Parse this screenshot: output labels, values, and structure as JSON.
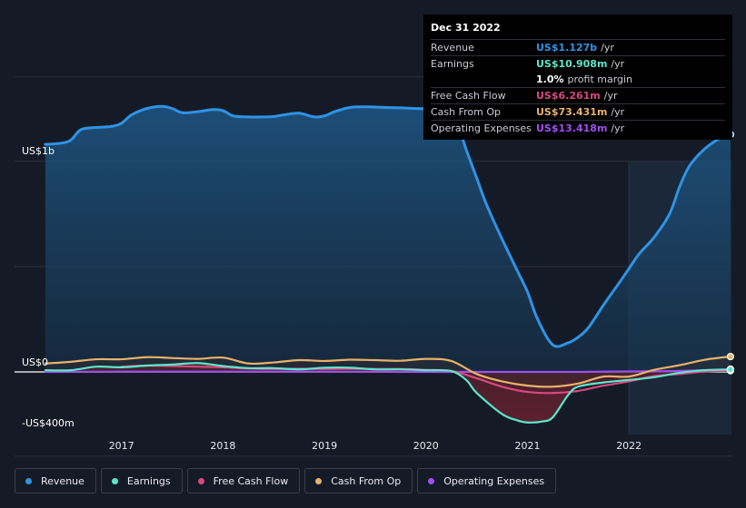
{
  "tooltip": {
    "date": "Dec 31 2022",
    "rows": [
      {
        "label": "Revenue",
        "value": "US$1.127b",
        "unit": "/yr",
        "color": "#2f93e5"
      },
      {
        "label": "Earnings",
        "value": "US$10.908m",
        "unit": "/yr",
        "color": "#5ce6cc"
      },
      {
        "label": "",
        "value": "1.0%",
        "unit": "profit margin",
        "color": "#ffffff"
      },
      {
        "label": "Free Cash Flow",
        "value": "US$6.261m",
        "unit": "/yr",
        "color": "#d9487f"
      },
      {
        "label": "Cash From Op",
        "value": "US$73.431m",
        "unit": "/yr",
        "color": "#e7b26b"
      },
      {
        "label": "Operating Expenses",
        "value": "US$13.418m",
        "unit": "/yr",
        "color": "#a24ef0"
      }
    ]
  },
  "legend": [
    {
      "label": "Revenue",
      "color": "#2f93e5"
    },
    {
      "label": "Earnings",
      "color": "#5ce6cc"
    },
    {
      "label": "Free Cash Flow",
      "color": "#d9487f"
    },
    {
      "label": "Cash From Op",
      "color": "#e7b26b"
    },
    {
      "label": "Operating Expenses",
      "color": "#a24ef0"
    }
  ],
  "chart_data": {
    "type": "area",
    "y_axis_labels": [
      "US$1b",
      "US$0",
      "-US$400m"
    ],
    "x_tick_labels": [
      "2017",
      "2018",
      "2019",
      "2020",
      "2021",
      "2022"
    ],
    "x_ticks": [
      2017,
      2018,
      2019,
      2020,
      2021,
      2022
    ],
    "xlim": [
      2015.9,
      2023.0
    ],
    "ylim": [
      -400,
      1400
    ],
    "gridlines": [
      -400,
      0,
      500,
      1000,
      1400
    ],
    "forecast_start": 2022.0,
    "grid": true,
    "series": [
      {
        "name": "Revenue",
        "color": "#2f93e5",
        "x": [
          2016.25,
          2016.4,
          2016.5,
          2016.6,
          2016.75,
          2016.9,
          2017.0,
          2017.1,
          2017.25,
          2017.4,
          2017.5,
          2017.6,
          2017.75,
          2017.9,
          2018.0,
          2018.1,
          2018.25,
          2018.4,
          2018.5,
          2018.6,
          2018.75,
          2018.9,
          2019.0,
          2019.1,
          2019.25,
          2019.4,
          2019.5,
          2019.6,
          2019.75,
          2019.9,
          2020.0,
          2020.1,
          2020.25,
          2020.4,
          2020.5,
          2020.6,
          2020.75,
          2020.9,
          2021.0,
          2021.1,
          2021.25,
          2021.4,
          2021.5,
          2021.6,
          2021.75,
          2021.9,
          2022.0,
          2022.1,
          2022.25,
          2022.4,
          2022.5,
          2022.6,
          2022.75,
          2022.9,
          2023.0
        ],
        "y": [
          1080,
          1085,
          1100,
          1150,
          1160,
          1165,
          1180,
          1220,
          1250,
          1260,
          1250,
          1230,
          1235,
          1245,
          1240,
          1215,
          1210,
          1210,
          1212,
          1220,
          1228,
          1210,
          1215,
          1235,
          1255,
          1258,
          1257,
          1255,
          1253,
          1250,
          1250,
          1255,
          1250,
          1050,
          920,
          790,
          630,
          480,
          380,
          250,
          128,
          138,
          165,
          210,
          318,
          420,
          490,
          560,
          640,
          750,
          880,
          980,
          1060,
          1110,
          1127
        ]
      },
      {
        "name": "Earnings",
        "color": "#5ce6cc",
        "x": [
          2016.25,
          2016.5,
          2016.75,
          2017.0,
          2017.25,
          2017.5,
          2017.75,
          2018.0,
          2018.25,
          2018.5,
          2018.75,
          2019.0,
          2019.25,
          2019.5,
          2019.75,
          2020.0,
          2020.25,
          2020.4,
          2020.5,
          2020.75,
          2020.9,
          2021.0,
          2021.15,
          2021.25,
          2021.4,
          2021.5,
          2021.75,
          2022.0,
          2022.25,
          2022.5,
          2022.75,
          2023.0
        ],
        "y": [
          8,
          8,
          25,
          22,
          30,
          35,
          42,
          28,
          18,
          18,
          12,
          20,
          20,
          12,
          12,
          8,
          4,
          -40,
          -100,
          -200,
          -230,
          -240,
          -235,
          -215,
          -110,
          -70,
          -50,
          -38,
          -25,
          -4,
          8,
          11
        ]
      },
      {
        "name": "Free Cash Flow",
        "color": "#d9487f",
        "x": [
          2017.0,
          2017.25,
          2017.5,
          2017.75,
          2018.0,
          2018.25,
          2018.5,
          2018.75,
          2019.0,
          2019.25,
          2019.5,
          2019.75,
          2020.0,
          2020.25,
          2020.5,
          2020.75,
          2021.0,
          2021.25,
          2021.5,
          2021.75,
          2022.0,
          2022.25,
          2022.5,
          2022.75,
          2023.0
        ],
        "y": [
          25,
          30,
          28,
          25,
          22,
          16,
          14,
          15,
          14,
          15,
          14,
          14,
          10,
          5,
          -30,
          -70,
          -95,
          -100,
          -90,
          -65,
          -45,
          -20,
          -10,
          2,
          6
        ]
      },
      {
        "name": "Cash From Op",
        "color": "#e7b26b",
        "x": [
          2016.25,
          2016.5,
          2016.75,
          2017.0,
          2017.25,
          2017.5,
          2017.75,
          2018.0,
          2018.25,
          2018.5,
          2018.75,
          2019.0,
          2019.25,
          2019.5,
          2019.75,
          2020.0,
          2020.25,
          2020.5,
          2020.75,
          2021.0,
          2021.25,
          2021.5,
          2021.75,
          2022.0,
          2022.25,
          2022.5,
          2022.75,
          2023.0
        ],
        "y": [
          40,
          48,
          60,
          60,
          70,
          66,
          62,
          68,
          40,
          45,
          56,
          52,
          58,
          56,
          53,
          62,
          52,
          -10,
          -45,
          -65,
          -70,
          -55,
          -22,
          -22,
          10,
          32,
          58,
          73
        ]
      },
      {
        "name": "Operating Expenses",
        "color": "#a24ef0",
        "x": [
          2016.25,
          2017.0,
          2018.0,
          2019.0,
          2020.0,
          2020.5,
          2021.0,
          2021.5,
          2022.0,
          2022.5,
          2023.0
        ],
        "y": [
          0,
          1,
          1,
          1,
          0,
          0,
          0,
          0,
          2,
          5,
          13
        ]
      }
    ]
  }
}
